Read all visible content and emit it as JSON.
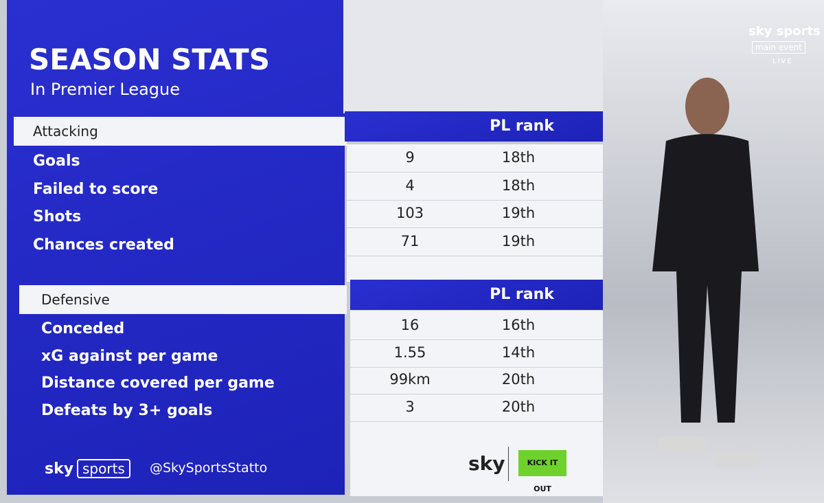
{
  "header": {
    "title": "SEASON STATS",
    "subtitle": "In Premier League"
  },
  "channel": {
    "brand": "sky sports",
    "event": "main event",
    "status": "LIVE"
  },
  "sections": [
    {
      "label": "Attacking",
      "rank_header": "PL rank",
      "rows": [
        [
          "Goals",
          "9",
          "18th"
        ],
        [
          "Failed to score",
          "4",
          "18th"
        ],
        [
          "Shots",
          "103",
          "19th"
        ],
        [
          "Chances created",
          "71",
          "19th"
        ]
      ]
    },
    {
      "label": "Defensive",
      "rank_header": "PL rank",
      "rows": [
        [
          "Conceded",
          "16",
          "16th"
        ],
        [
          "xG against per game",
          "1.55",
          "14th"
        ],
        [
          "Distance covered per game",
          "99km",
          "20th"
        ],
        [
          "Defeats by 3+ goals",
          "3",
          "20th"
        ]
      ]
    }
  ],
  "footer": {
    "brand_sky": "sky",
    "brand_sports": "sports",
    "handle": "@SkySportsStatto",
    "sponsor": "sky",
    "campaign": "KICK IT OUT"
  }
}
